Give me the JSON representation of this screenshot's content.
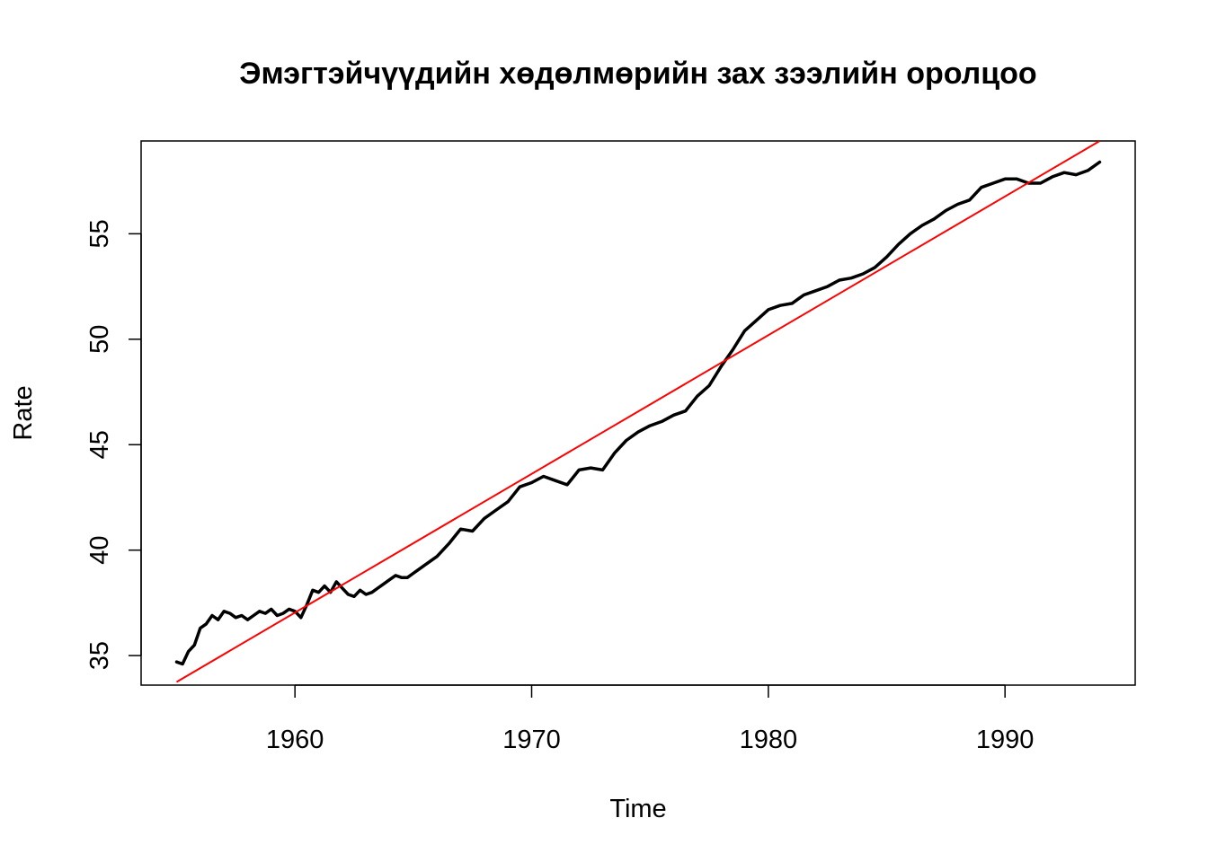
{
  "chart_data": {
    "type": "line",
    "title": "Эмэгтэйчүүдийн хөдөлмөрийн зах зээлийн оролцоо",
    "xlabel": "Time",
    "ylabel": "Rate",
    "xlim": [
      1953.5,
      1995.5
    ],
    "ylim": [
      33.6,
      59.4
    ],
    "x_ticks": [
      1960,
      1970,
      1980,
      1990
    ],
    "y_ticks": [
      35,
      40,
      45,
      50,
      55
    ],
    "grid": false,
    "legend": "none",
    "colors": {
      "series": "#000000",
      "trend": "#ff0000"
    },
    "series": [
      {
        "x": [
          1955.0,
          1955.25,
          1955.5,
          1955.75,
          1956.0,
          1956.25,
          1956.5,
          1956.75,
          1957.0,
          1957.25,
          1957.5,
          1957.75,
          1958.0,
          1958.25,
          1958.5,
          1958.75,
          1959.0,
          1959.25,
          1959.5,
          1959.75,
          1960.0,
          1960.25,
          1960.5,
          1960.75,
          1961.0,
          1961.25,
          1961.5,
          1961.75,
          1962.0,
          1962.25,
          1962.5,
          1962.75,
          1963.0,
          1963.25,
          1963.5,
          1963.75,
          1964.0,
          1964.25,
          1964.5,
          1964.75,
          1965.0,
          1965.5,
          1966.0,
          1966.5,
          1967.0,
          1967.5,
          1968.0,
          1968.5,
          1969.0,
          1969.5,
          1970.0,
          1970.5,
          1971.0,
          1971.5,
          1972.0,
          1972.5,
          1973.0,
          1973.5,
          1974.0,
          1974.5,
          1975.0,
          1975.5,
          1976.0,
          1976.5,
          1977.0,
          1977.5,
          1978.0,
          1978.5,
          1979.0,
          1979.5,
          1980.0,
          1980.5,
          1981.0,
          1981.5,
          1982.0,
          1982.5,
          1983.0,
          1983.5,
          1984.0,
          1984.5,
          1985.0,
          1985.5,
          1986.0,
          1986.5,
          1987.0,
          1987.5,
          1988.0,
          1988.5,
          1989.0,
          1989.5,
          1990.0,
          1990.5,
          1991.0,
          1991.5,
          1992.0,
          1992.5,
          1993.0,
          1993.5,
          1994.0
        ],
        "values": [
          34.7,
          34.6,
          35.2,
          35.5,
          36.3,
          36.5,
          36.9,
          36.7,
          37.1,
          37.0,
          36.8,
          36.9,
          36.7,
          36.9,
          37.1,
          37.0,
          37.2,
          36.9,
          37.0,
          37.2,
          37.1,
          36.8,
          37.4,
          38.1,
          38.0,
          38.3,
          38.0,
          38.5,
          38.2,
          37.9,
          37.8,
          38.1,
          37.9,
          38.0,
          38.2,
          38.4,
          38.6,
          38.8,
          38.7,
          38.7,
          38.9,
          39.3,
          39.7,
          40.3,
          41.0,
          40.9,
          41.5,
          41.9,
          42.3,
          43.0,
          43.2,
          43.5,
          43.3,
          43.1,
          43.8,
          43.9,
          43.8,
          44.6,
          45.2,
          45.6,
          45.9,
          46.1,
          46.4,
          46.6,
          47.3,
          47.8,
          48.7,
          49.5,
          50.4,
          50.9,
          51.4,
          51.6,
          51.7,
          52.1,
          52.3,
          52.5,
          52.8,
          52.9,
          53.1,
          53.4,
          53.9,
          54.5,
          55.0,
          55.4,
          55.7,
          56.1,
          56.4,
          56.6,
          57.2,
          57.4,
          57.6,
          57.6,
          57.4,
          57.4,
          57.7,
          57.9,
          57.8,
          58.0,
          58.4
        ]
      },
      {
        "x": [
          1955.0,
          1994.0
        ],
        "values": [
          33.75,
          59.4
        ]
      }
    ]
  }
}
